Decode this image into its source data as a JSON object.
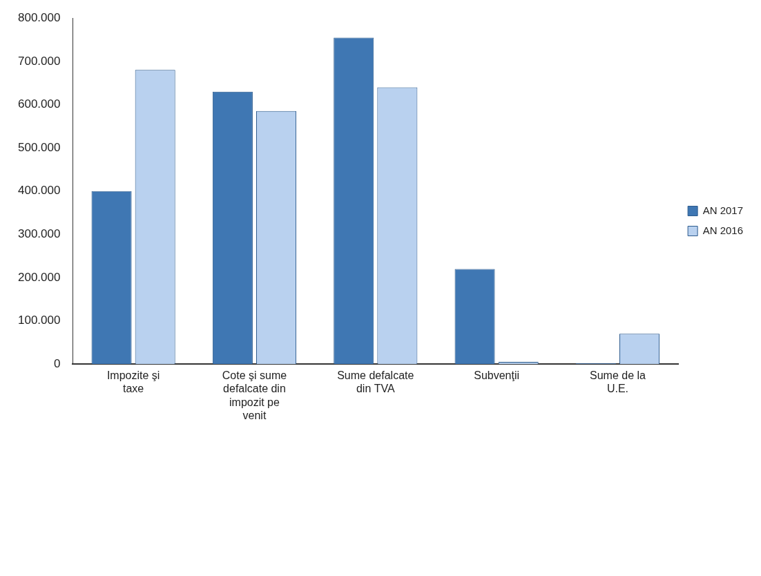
{
  "chart_data": {
    "type": "bar",
    "categories": [
      "Impozite şi taxe",
      "Cote şi sume defalcate din impozit pe venit",
      "Sume defalcate din TVA",
      "Subvenţii",
      "Sume de la U.E."
    ],
    "series": [
      {
        "name": "AN 2017",
        "color": "#3f77b3",
        "values": [
          400000,
          630000,
          755000,
          220000,
          2000
        ]
      },
      {
        "name": "AN 2016",
        "color": "#b9d1ef",
        "values": [
          680000,
          585000,
          640000,
          5000,
          70000
        ]
      }
    ],
    "ylim": [
      0,
      800000
    ],
    "yticks": [
      0,
      {
        "value": 100000,
        "label": "100.000"
      },
      {
        "value": 200000,
        "label": "200.000"
      },
      {
        "value": 300000,
        "label": "300.000"
      },
      {
        "value": 400000,
        "label": "400.000"
      },
      {
        "value": 500000,
        "label": "500.000"
      },
      {
        "value": 600000,
        "label": "600.000"
      },
      {
        "value": 700000,
        "label": "700.000"
      },
      {
        "value": 800000,
        "label": "800.000"
      }
    ],
    "grid": false,
    "legend": "right"
  }
}
